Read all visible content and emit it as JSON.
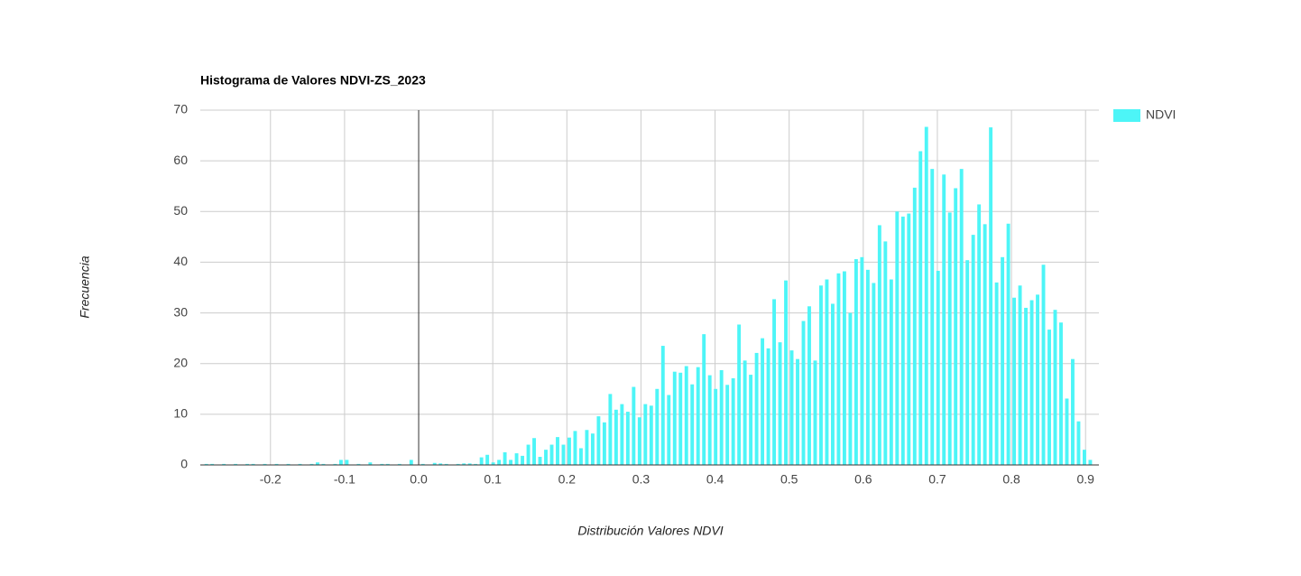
{
  "chart_data": {
    "type": "histogram",
    "title": "Histograma de Valores NDVI-ZS_2023",
    "x_label": "Distribución Valores NDVI",
    "y_label": "Frecuencia",
    "series": [
      {
        "name": "NDVI",
        "color": "#4df5f7",
        "bins": [
          -0.2905,
          -0.2826,
          -0.2747,
          -0.2668,
          -0.2589,
          -0.251,
          -0.2431,
          -0.2352,
          -0.2273,
          -0.2194,
          -0.2115,
          -0.2036,
          -0.1957,
          -0.1878,
          -0.1799,
          -0.172,
          -0.1641,
          -0.1562,
          -0.1483,
          -0.1404,
          -0.1325,
          -0.1246,
          -0.1167,
          -0.1088,
          -0.1009,
          -0.093,
          -0.0851,
          -0.0772,
          -0.0693,
          -0.0614,
          -0.0535,
          -0.0456,
          -0.0377,
          -0.0298,
          -0.0219,
          -0.014,
          -0.0061,
          0.0018,
          0.0097,
          0.0176,
          0.0255,
          0.0334,
          0.0413,
          0.0492,
          0.0571,
          0.065,
          0.0729,
          0.0808,
          0.0887,
          0.0966,
          0.1045,
          0.1124,
          0.1203,
          0.1282,
          0.1361,
          0.144,
          0.1519,
          0.1598,
          0.1677,
          0.1756,
          0.1835,
          0.1914,
          0.1993,
          0.2072,
          0.2151,
          0.223,
          0.2309,
          0.2388,
          0.2467,
          0.2546,
          0.2625,
          0.2704,
          0.2783,
          0.2862,
          0.2941,
          0.302,
          0.3099,
          0.3178,
          0.3257,
          0.3336,
          0.3415,
          0.3494,
          0.3573,
          0.3652,
          0.3731,
          0.381,
          0.3889,
          0.3968,
          0.4047,
          0.4126,
          0.4205,
          0.4284,
          0.4363,
          0.4442,
          0.4521,
          0.46,
          0.4679,
          0.4758,
          0.4837,
          0.4916,
          0.4995,
          0.5074,
          0.5153,
          0.5232,
          0.5311,
          0.539,
          0.5469,
          0.5548,
          0.5627,
          0.5706,
          0.5785,
          0.5864,
          0.5943,
          0.6022,
          0.6101,
          0.618,
          0.6259,
          0.6338,
          0.6417,
          0.6496,
          0.6575,
          0.6654,
          0.6733,
          0.6812,
          0.6891,
          0.697,
          0.7049,
          0.7128,
          0.7207,
          0.7286,
          0.7365,
          0.7444,
          0.7523,
          0.7602,
          0.7681,
          0.776,
          0.7839,
          0.7918,
          0.7997,
          0.8076,
          0.8155,
          0.8234,
          0.8313,
          0.8392,
          0.8471,
          0.855,
          0.8629,
          0.8708,
          0.8787,
          0.8866,
          0.8945,
          0.9024,
          0.9103
        ],
        "values": [
          0.2,
          0.2,
          0,
          0.2,
          0,
          0.2,
          0,
          0.2,
          0.2,
          0,
          0.2,
          0,
          0.2,
          0,
          0.2,
          0,
          0.2,
          0,
          0.2,
          0.5,
          0.2,
          0,
          0.2,
          1,
          1,
          0,
          0.2,
          0,
          0.5,
          0,
          0.2,
          0.2,
          0,
          0.2,
          0,
          1,
          0,
          0.2,
          0,
          0.4,
          0.3,
          0.2,
          0,
          0.2,
          0.3,
          0.3,
          0.2,
          1.5,
          2,
          0.5,
          1,
          2.5,
          1,
          2.3,
          1.8,
          4,
          5.3,
          1.6,
          3,
          4,
          5.5,
          4,
          5.4,
          6.7,
          3.3,
          6.9,
          6.2,
          9.6,
          8.4,
          14,
          10.9,
          12,
          10.5,
          15.4,
          9.4,
          12,
          11.7,
          15,
          23.5,
          13.8,
          18.4,
          18.2,
          19.5,
          15.9,
          19.3,
          25.8,
          17.7,
          15,
          18.7,
          15.8,
          17.1,
          27.7,
          20.6,
          17.8,
          22.1,
          25,
          23,
          32.7,
          24.2,
          36.4,
          22.6,
          20.9,
          28.4,
          31.3,
          20.6,
          35.4,
          36.6,
          31.8,
          37.8,
          38.2,
          30,
          40.6,
          41,
          38.5,
          35.9,
          47.3,
          44.1,
          36.6,
          50,
          49,
          49.6,
          54.7,
          61.9,
          66.7,
          58.4,
          38.3,
          57.3,
          49.8,
          54.6,
          58.4,
          40.4,
          45.4,
          51.4,
          47.5,
          66.6,
          36,
          41,
          47.6,
          33,
          35.4,
          31,
          32.5,
          33.6,
          39.5,
          26.7,
          30.6,
          28.1,
          13.1,
          20.9,
          8.6,
          3,
          1
        ]
      }
    ],
    "xlim": [
      -0.2947,
      0.918
    ],
    "xticks": [
      -0.2,
      -0.1,
      {
        "value": 0,
        "label": "0.0"
      },
      0.1,
      0.2,
      0.3,
      0.4,
      0.5,
      0.6,
      0.7,
      0.8,
      0.9
    ],
    "ylim": [
      0,
      70
    ],
    "yticks": [
      0,
      10,
      20,
      30,
      40,
      50,
      60,
      70
    ],
    "grid": true,
    "legend": "right"
  }
}
